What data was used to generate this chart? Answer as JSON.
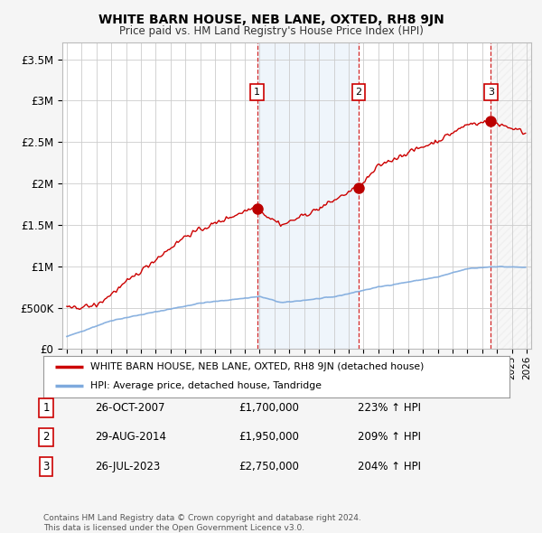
{
  "title": "WHITE BARN HOUSE, NEB LANE, OXTED, RH8 9JN",
  "subtitle": "Price paid vs. HM Land Registry's House Price Index (HPI)",
  "sales": [
    {
      "year": 2007.83,
      "price": 1700000,
      "label": "1"
    },
    {
      "year": 2014.67,
      "price": 1950000,
      "label": "2"
    },
    {
      "year": 2023.58,
      "price": 2750000,
      "label": "3"
    }
  ],
  "sale_details": [
    {
      "num": "1",
      "date": "26-OCT-2007",
      "price": "£1,700,000",
      "hpi": "223% ↑ HPI"
    },
    {
      "num": "2",
      "date": "29-AUG-2014",
      "price": "£1,950,000",
      "hpi": "209% ↑ HPI"
    },
    {
      "num": "3",
      "date": "26-JUL-2023",
      "price": "£2,750,000",
      "hpi": "204% ↑ HPI"
    }
  ],
  "hpi_color": "#7eaadd",
  "price_color": "#cc0000",
  "sale_marker_color": "#bb0000",
  "vline_color": "#cc0000",
  "ylabel_ticks": [
    "£0",
    "£500K",
    "£1M",
    "£1.5M",
    "£2M",
    "£2.5M",
    "£3M",
    "£3.5M"
  ],
  "ytick_values": [
    0,
    500000,
    1000000,
    1500000,
    2000000,
    2500000,
    3000000,
    3500000
  ],
  "ylim": [
    0,
    3700000
  ],
  "xlim_start": 1994.7,
  "xlim_end": 2026.3,
  "background_color": "#f5f5f5",
  "plot_bg_color": "#ffffff",
  "footer": "Contains HM Land Registry data © Crown copyright and database right 2024.\nThis data is licensed under the Open Government Licence v3.0.",
  "legend_label_red": "WHITE BARN HOUSE, NEB LANE, OXTED, RH8 9JN (detached house)",
  "legend_label_blue": "HPI: Average price, detached house, Tandridge"
}
